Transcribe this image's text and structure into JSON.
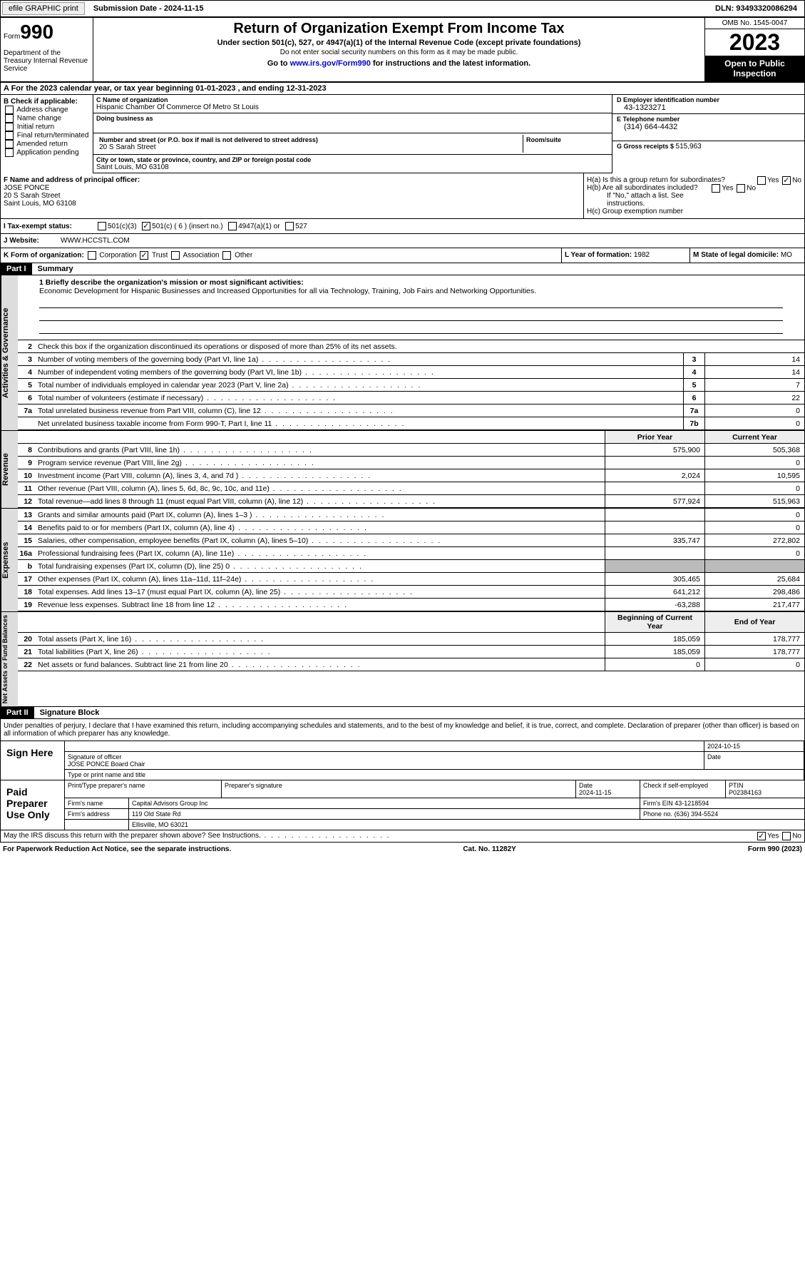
{
  "topbar": {
    "efile": "efile GRAPHIC print",
    "sub_label": "Submission Date - ",
    "sub_date": "2024-11-15",
    "dln_label": "DLN: ",
    "dln": "93493320086294"
  },
  "header": {
    "form_word": "Form",
    "form_num": "990",
    "dept": "Department of the Treasury\nInternal Revenue Service",
    "title": "Return of Organization Exempt From Income Tax",
    "subtitle": "Under section 501(c), 527, or 4947(a)(1) of the Internal Revenue Code (except private foundations)",
    "note": "Do not enter social security numbers on this form as it may be made public.",
    "goto": "Go to www.irs.gov/Form990 for instructions and the latest information.",
    "goto_link": "www.irs.gov/Form990",
    "omb": "OMB No. 1545-0047",
    "year": "2023",
    "open": "Open to Public Inspection"
  },
  "rowA": {
    "text": "A For the 2023 calendar year, or tax year beginning 01-01-2023   , and ending 12-31-2023"
  },
  "boxB": {
    "label": "B Check if applicable:",
    "items": [
      "Address change",
      "Name change",
      "Initial return",
      "Final return/terminated",
      "Amended return",
      "Application pending"
    ]
  },
  "boxC": {
    "name_lbl": "C Name of organization",
    "name": "Hispanic Chamber Of Commerce Of Metro St Louis",
    "dba_lbl": "Doing business as",
    "dba": "",
    "addr_lbl": "Number and street (or P.O. box if mail is not delivered to street address)",
    "addr": "20 S Sarah Street",
    "room_lbl": "Room/suite",
    "room": "",
    "city_lbl": "City or town, state or province, country, and ZIP or foreign postal code",
    "city": "Saint Louis, MO  63108"
  },
  "boxD": {
    "ein_lbl": "D Employer identification number",
    "ein": "43-1323271",
    "phone_lbl": "E Telephone number",
    "phone": "(314) 664-4432",
    "gross_lbl": "G Gross receipts $ ",
    "gross": "515,963"
  },
  "boxF": {
    "lbl": "F  Name and address of principal officer:",
    "name": "JOSE PONCE",
    "addr1": "20 S Sarah Street",
    "addr2": "Saint Louis, MO  63108"
  },
  "boxH": {
    "a": "H(a)  Is this a group return for subordinates?",
    "a_yes": "Yes",
    "a_no": "No",
    "b": "H(b)  Are all subordinates included?",
    "b_note": "If \"No,\" attach a list. See instructions.",
    "c": "H(c)  Group exemption number"
  },
  "rowI": {
    "lbl": "I  Tax-exempt status:",
    "o1": "501(c)(3)",
    "o2": "501(c) ( 6 ) (insert no.)",
    "o3": "4947(a)(1) or",
    "o4": "527"
  },
  "rowJ": {
    "lbl": "J  Website:",
    "val": "WWW.HCCSTL.COM"
  },
  "rowK": {
    "lbl": "K Form of organization:",
    "o1": "Corporation",
    "o2": "Trust",
    "o3": "Association",
    "o4": "Other",
    "L": "L Year of formation: ",
    "Lval": "1982",
    "M": "M State of legal domicile:",
    "Mval": "MO"
  },
  "parts": {
    "p1": "Part I",
    "p1t": "Summary",
    "p2": "Part II",
    "p2t": "Signature Block"
  },
  "summary": {
    "l1_lbl": "1  Briefly describe the organization's mission or most significant activities:",
    "l1_text": "Economic Development for Hispanic Businesses and Increased Opportunities for all via Technology, Training, Job Fairs and Networking Opportunities.",
    "l2": "Check this box      if the organization discontinued its operations or disposed of more than 25% of its net assets.",
    "prior": "Prior Year",
    "current": "Current Year",
    "begin": "Beginning of Current Year",
    "end": "End of Year",
    "rows_gov": [
      {
        "n": "3",
        "d": "Number of voting members of the governing body (Part VI, line 1a)",
        "box": "3",
        "v": "14"
      },
      {
        "n": "4",
        "d": "Number of independent voting members of the governing body (Part VI, line 1b)",
        "box": "4",
        "v": "14"
      },
      {
        "n": "5",
        "d": "Total number of individuals employed in calendar year 2023 (Part V, line 2a)",
        "box": "5",
        "v": "7"
      },
      {
        "n": "6",
        "d": "Total number of volunteers (estimate if necessary)",
        "box": "6",
        "v": "22"
      },
      {
        "n": "7a",
        "d": "Total unrelated business revenue from Part VIII, column (C), line 12",
        "box": "7a",
        "v": "0"
      },
      {
        "n": "",
        "d": "Net unrelated business taxable income from Form 990-T, Part I, line 11",
        "box": "7b",
        "v": "0"
      }
    ],
    "rows_rev": [
      {
        "n": "8",
        "d": "Contributions and grants (Part VIII, line 1h)",
        "p": "575,900",
        "c": "505,368"
      },
      {
        "n": "9",
        "d": "Program service revenue (Part VIII, line 2g)",
        "p": "",
        "c": "0"
      },
      {
        "n": "10",
        "d": "Investment income (Part VIII, column (A), lines 3, 4, and 7d )",
        "p": "2,024",
        "c": "10,595"
      },
      {
        "n": "11",
        "d": "Other revenue (Part VIII, column (A), lines 5, 6d, 8c, 9c, 10c, and 11e)",
        "p": "",
        "c": "0"
      },
      {
        "n": "12",
        "d": "Total revenue—add lines 8 through 11 (must equal Part VIII, column (A), line 12)",
        "p": "577,924",
        "c": "515,963"
      }
    ],
    "rows_exp": [
      {
        "n": "13",
        "d": "Grants and similar amounts paid (Part IX, column (A), lines 1–3 )",
        "p": "",
        "c": "0"
      },
      {
        "n": "14",
        "d": "Benefits paid to or for members (Part IX, column (A), line 4)",
        "p": "",
        "c": "0"
      },
      {
        "n": "15",
        "d": "Salaries, other compensation, employee benefits (Part IX, column (A), lines 5–10)",
        "p": "335,747",
        "c": "272,802"
      },
      {
        "n": "16a",
        "d": "Professional fundraising fees (Part IX, column (A), line 11e)",
        "p": "",
        "c": "0"
      },
      {
        "n": "b",
        "d": "Total fundraising expenses (Part IX, column (D), line 25) 0",
        "p": "SHADE",
        "c": "SHADE"
      },
      {
        "n": "17",
        "d": "Other expenses (Part IX, column (A), lines 11a–11d, 11f–24e)",
        "p": "305,465",
        "c": "25,684"
      },
      {
        "n": "18",
        "d": "Total expenses. Add lines 13–17 (must equal Part IX, column (A), line 25)",
        "p": "641,212",
        "c": "298,486"
      },
      {
        "n": "19",
        "d": "Revenue less expenses. Subtract line 18 from line 12",
        "p": "-63,288",
        "c": "217,477"
      }
    ],
    "rows_net": [
      {
        "n": "20",
        "d": "Total assets (Part X, line 16)",
        "p": "185,059",
        "c": "178,777"
      },
      {
        "n": "21",
        "d": "Total liabilities (Part X, line 26)",
        "p": "185,059",
        "c": "178,777"
      },
      {
        "n": "22",
        "d": "Net assets or fund balances. Subtract line 21 from line 20",
        "p": "0",
        "c": "0"
      }
    ]
  },
  "sig": {
    "decl": "Under penalties of perjury, I declare that I have examined this return, including accompanying schedules and statements, and to the best of my knowledge and belief, it is true, correct, and complete. Declaration of preparer (other than officer) is based on all information of which preparer has any knowledge.",
    "sign_here": "Sign Here",
    "sig_officer": "Signature of officer",
    "officer": "JOSE PONCE  Board Chair",
    "type_title": "Type or print name and title",
    "date1": "2024-10-15",
    "date_lbl": "Date",
    "paid": "Paid Preparer Use Only",
    "prep_name_lbl": "Print/Type preparer's name",
    "prep_sig_lbl": "Preparer's signature",
    "date2": "2024-11-15",
    "check_lbl": "Check       if self-employed",
    "ptin_lbl": "PTIN",
    "ptin": "P02384163",
    "firm_name_lbl": "Firm's name",
    "firm_name": "Capital Advisors Group Inc",
    "firm_ein_lbl": "Firm's EIN",
    "firm_ein": "43-1218594",
    "firm_addr_lbl": "Firm's address",
    "firm_addr1": "119 Old State Rd",
    "firm_addr2": "Ellisville, MO  63021",
    "phone_lbl": "Phone no.",
    "phone": "(636) 394-5524"
  },
  "footer": {
    "discuss": "May the IRS discuss this return with the preparer shown above? See Instructions.",
    "yes": "Yes",
    "no": "No",
    "pra": "For Paperwork Reduction Act Notice, see the separate instructions.",
    "cat": "Cat. No. 11282Y",
    "form": "Form 990 (2023)"
  },
  "vtabs": {
    "gov": "Activities & Governance",
    "rev": "Revenue",
    "exp": "Expenses",
    "net": "Net Assets or Fund Balances"
  }
}
